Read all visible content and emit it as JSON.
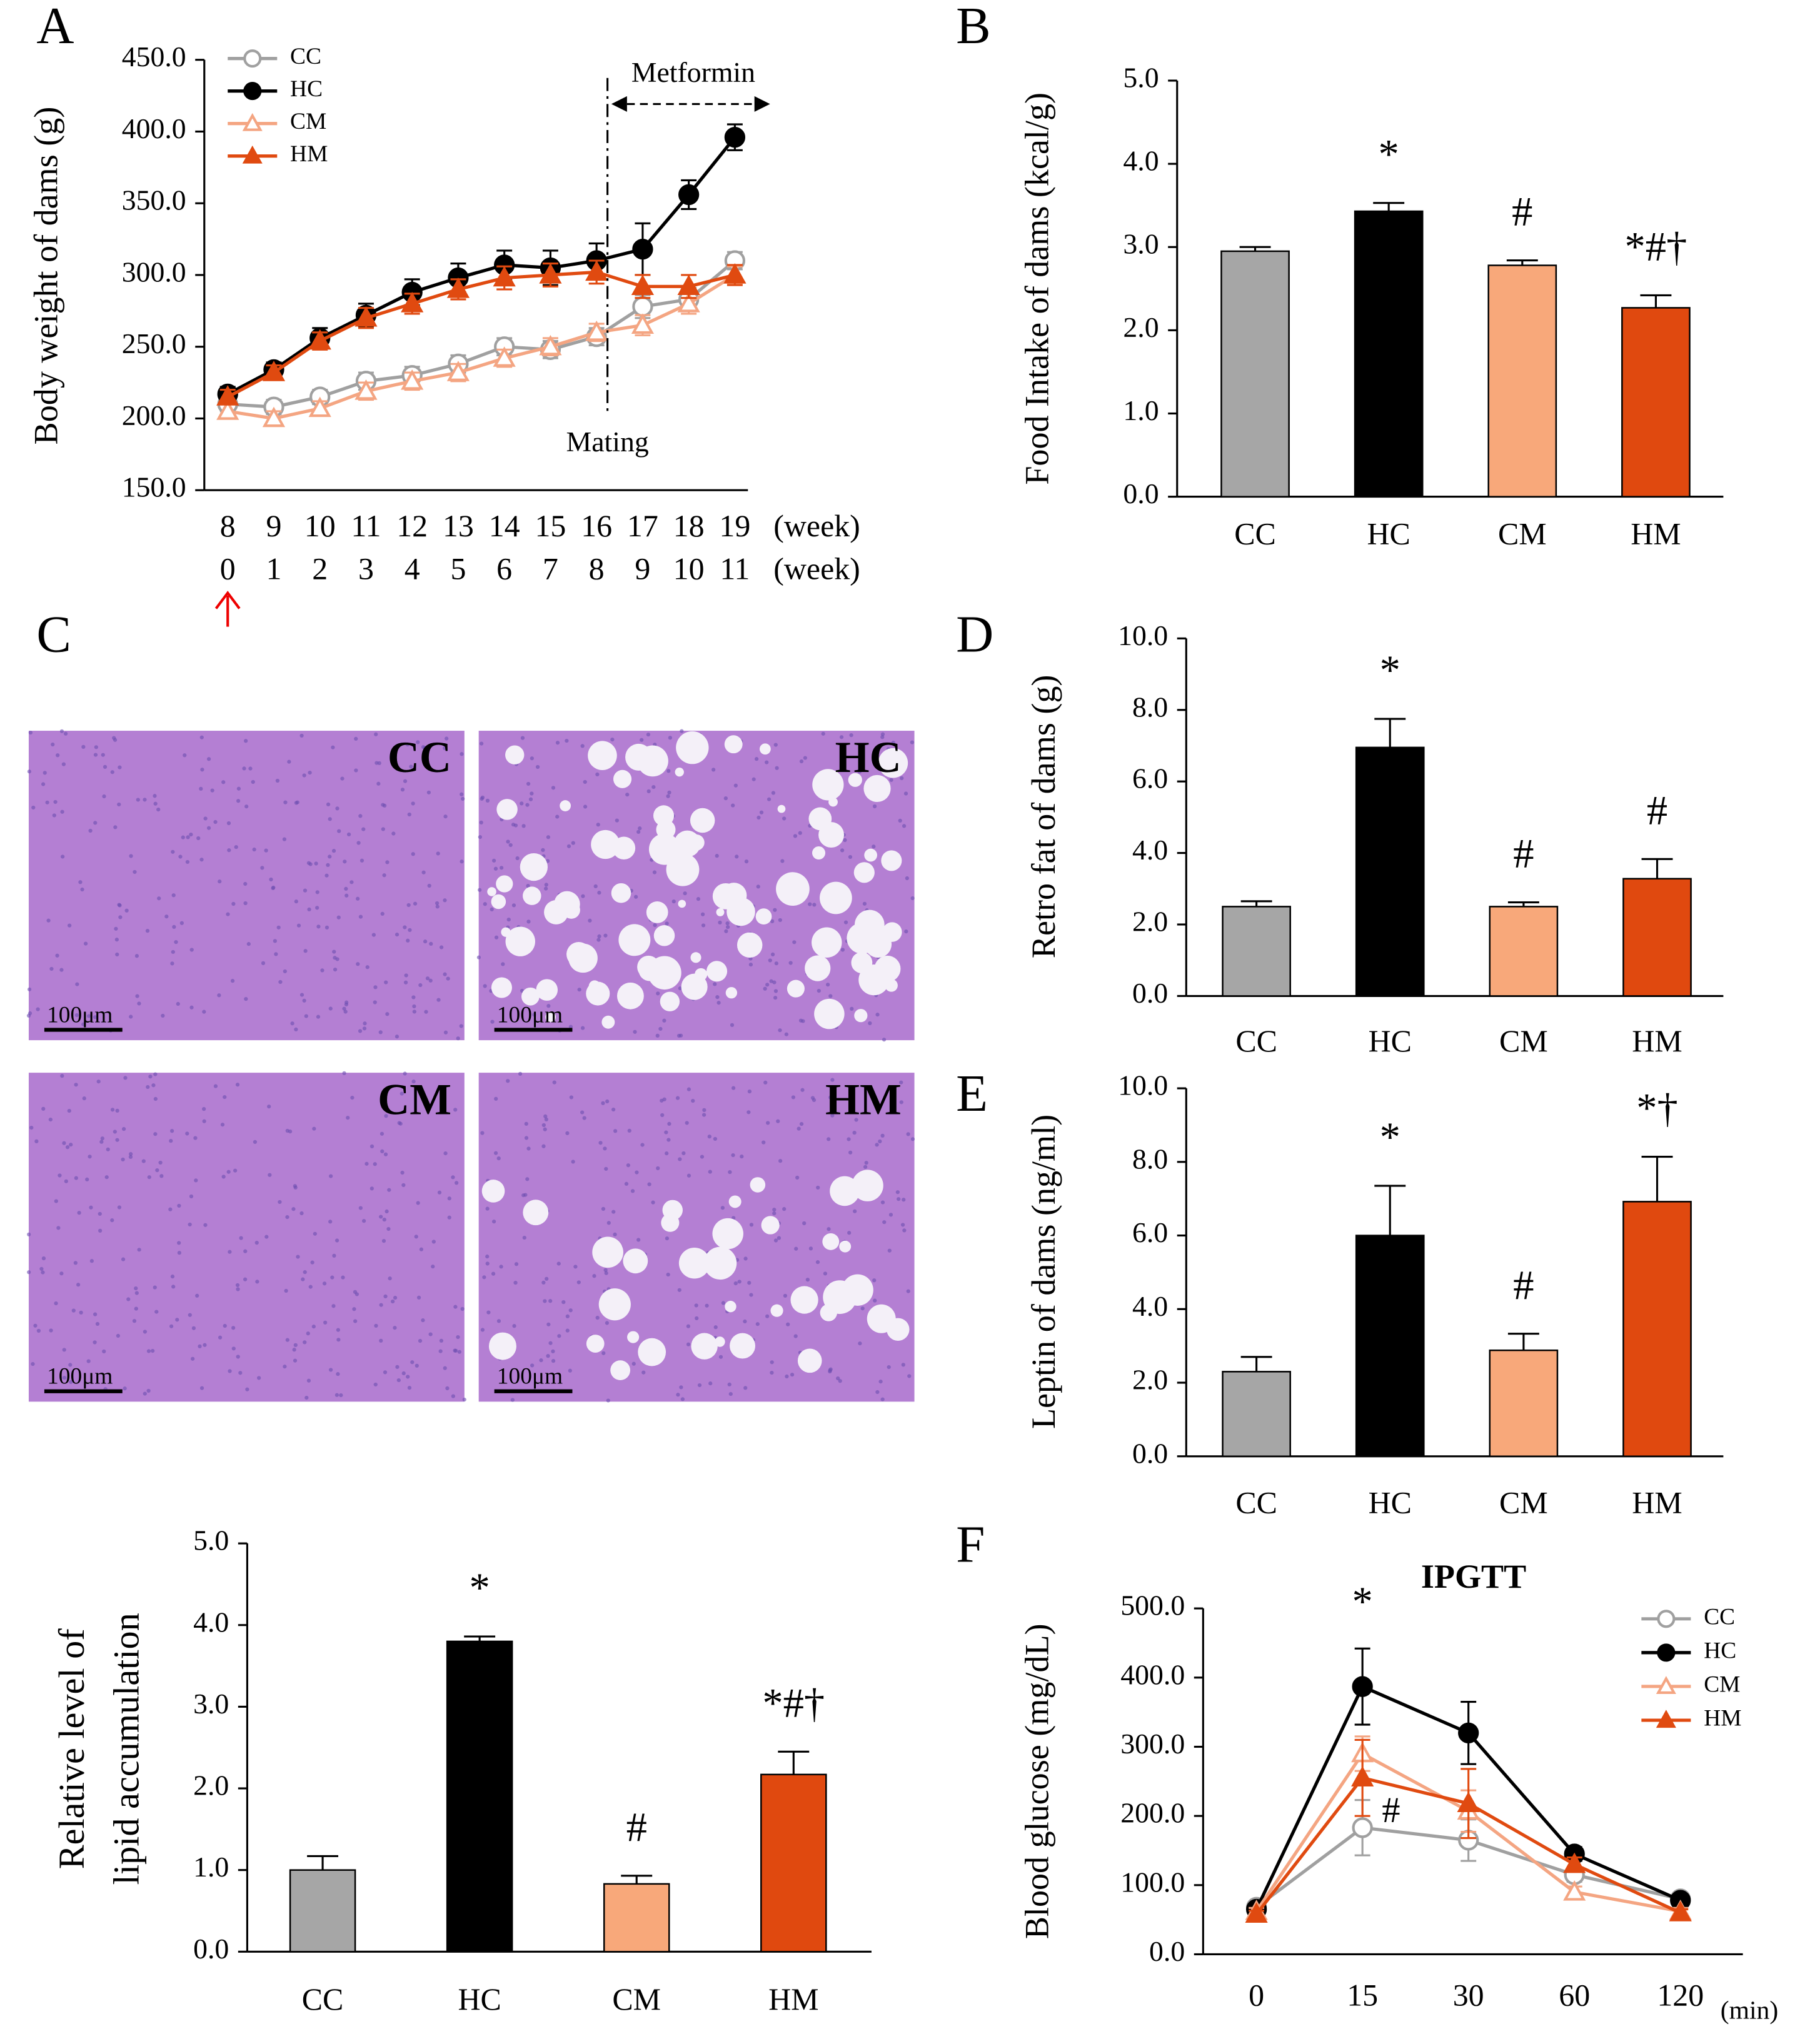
{
  "panel_letters": [
    "A",
    "B",
    "C",
    "D",
    "E",
    "F"
  ],
  "histology": {
    "panels": [
      {
        "label": "CC",
        "scale": "100μm"
      },
      {
        "label": "HC",
        "scale": "100μm"
      },
      {
        "label": "CM",
        "scale": "100μm"
      },
      {
        "label": "HM",
        "scale": "100μm"
      }
    ]
  },
  "chart_data": [
    {
      "type": "line",
      "ylabel": "Body weight of dams (g)",
      "categories": [
        "8",
        "9",
        "10",
        "11",
        "12",
        "13",
        "14",
        "15",
        "16",
        "17",
        "18",
        "19"
      ],
      "categories2": [
        "0",
        "1",
        "2",
        "3",
        "4",
        "5",
        "6",
        "7",
        "8",
        "9",
        "10",
        "11"
      ],
      "xlabel": "(week)",
      "xlabel2": "(week)",
      "annotation_metformin": "Metformin",
      "annotation_mating": "Mating",
      "ylim": [
        150,
        450
      ],
      "yticks": [
        {
          "value": 150,
          "label": "150.0"
        },
        {
          "value": 200,
          "label": "200.0"
        },
        {
          "value": 250,
          "label": "250.0"
        },
        {
          "value": 300,
          "label": "300.0"
        },
        {
          "value": 350,
          "label": "350.0"
        },
        {
          "value": 400,
          "label": "400.0"
        },
        {
          "value": 450,
          "label": "450.0"
        }
      ],
      "series": [
        {
          "name": "CC",
          "color": "#a0a0a0",
          "marker": "circle",
          "filled": false,
          "values": [
            210,
            208,
            215,
            226,
            230,
            238,
            250,
            248,
            257,
            278,
            283,
            310
          ],
          "errors": [
            5,
            5,
            5,
            6,
            6,
            6,
            6,
            6,
            6,
            8,
            8,
            6
          ]
        },
        {
          "name": "HC",
          "color": "#000000",
          "marker": "circle",
          "filled": true,
          "values": [
            217,
            234,
            256,
            272,
            288,
            298,
            307,
            305,
            310,
            318,
            356,
            396
          ],
          "errors": [
            5,
            5,
            7,
            8,
            9,
            10,
            10,
            12,
            12,
            18,
            10,
            9
          ]
        },
        {
          "name": "CM",
          "color": "#f4a582",
          "marker": "triangle",
          "filled": false,
          "values": [
            205,
            200,
            207,
            219,
            226,
            232,
            242,
            250,
            260,
            265,
            280,
            300
          ],
          "errors": [
            5,
            5,
            5,
            6,
            6,
            6,
            6,
            6,
            6,
            7,
            7,
            6
          ]
        },
        {
          "name": "HM",
          "color": "#e04a10",
          "marker": "triangle",
          "filled": true,
          "values": [
            215,
            232,
            254,
            270,
            280,
            290,
            298,
            300,
            302,
            292,
            292,
            300
          ],
          "errors": [
            5,
            5,
            6,
            7,
            7,
            7,
            8,
            8,
            8,
            8,
            8,
            7
          ]
        }
      ]
    },
    {
      "type": "bar",
      "ylabel": "Food Intake of dams (kcal/g)",
      "categories": [
        "CC",
        "HC",
        "CM",
        "HM"
      ],
      "values": [
        2.95,
        3.43,
        2.78,
        2.27
      ],
      "errors": [
        0.05,
        0.1,
        0.06,
        0.15
      ],
      "colors": [
        "#a6a6a6",
        "#000000",
        "#f8a87a",
        "#e0490f"
      ],
      "annotations": [
        null,
        "*",
        "#",
        "*#†"
      ],
      "ylim": [
        0,
        5
      ],
      "yticks": [
        {
          "value": 0,
          "label": "0.0"
        },
        {
          "value": 1,
          "label": "1.0"
        },
        {
          "value": 2,
          "label": "2.0"
        },
        {
          "value": 3,
          "label": "3.0"
        },
        {
          "value": 4,
          "label": "4.0"
        },
        {
          "value": 5,
          "label": "5.0"
        }
      ]
    },
    {
      "type": "bar",
      "ylabel": "Retro fat of dams (g)",
      "categories": [
        "CC",
        "HC",
        "CM",
        "HM"
      ],
      "values": [
        2.5,
        6.95,
        2.5,
        3.28
      ],
      "errors": [
        0.15,
        0.8,
        0.12,
        0.55
      ],
      "colors": [
        "#a6a6a6",
        "#000000",
        "#f8a87a",
        "#e0490f"
      ],
      "annotations": [
        null,
        "*",
        "#",
        "#"
      ],
      "ylim": [
        0,
        10
      ],
      "yticks": [
        {
          "value": 0,
          "label": "0.0"
        },
        {
          "value": 2,
          "label": "2.0"
        },
        {
          "value": 4,
          "label": "4.0"
        },
        {
          "value": 6,
          "label": "6.0"
        },
        {
          "value": 8,
          "label": "8.0"
        },
        {
          "value": 10,
          "label": "10.0"
        }
      ]
    },
    {
      "type": "bar",
      "ylabel": "Leptin of dams (ng/ml)",
      "categories": [
        "CC",
        "HC",
        "CM",
        "HM"
      ],
      "values": [
        2.3,
        6.0,
        2.88,
        6.92
      ],
      "errors": [
        0.4,
        1.35,
        0.45,
        1.22
      ],
      "colors": [
        "#a6a6a6",
        "#000000",
        "#f8a87a",
        "#e0490f"
      ],
      "annotations": [
        null,
        "*",
        "#",
        "*†"
      ],
      "ylim": [
        0,
        10
      ],
      "yticks": [
        {
          "value": 0,
          "label": "0.0"
        },
        {
          "value": 2,
          "label": "2.0"
        },
        {
          "value": 4,
          "label": "4.0"
        },
        {
          "value": 6,
          "label": "6.0"
        },
        {
          "value": 8,
          "label": "8.0"
        },
        {
          "value": 10,
          "label": "10.0"
        }
      ]
    },
    {
      "type": "bar",
      "ylabel": [
        "Relative level of",
        "lipid accumulation"
      ],
      "categories": [
        "CC",
        "HC",
        "CM",
        "HM"
      ],
      "values": [
        1.0,
        3.8,
        0.83,
        2.17
      ],
      "errors": [
        0.17,
        0.06,
        0.1,
        0.28
      ],
      "colors": [
        "#a6a6a6",
        "#000000",
        "#f8a87a",
        "#e0490f"
      ],
      "annotations": [
        null,
        "*",
        "#",
        "*#†"
      ],
      "ylim": [
        0,
        5
      ],
      "yticks": [
        {
          "value": 0,
          "label": "0.0"
        },
        {
          "value": 1,
          "label": "1.0"
        },
        {
          "value": 2,
          "label": "2.0"
        },
        {
          "value": 3,
          "label": "3.0"
        },
        {
          "value": 4,
          "label": "4.0"
        },
        {
          "value": 5,
          "label": "5.0"
        }
      ]
    },
    {
      "type": "line",
      "title": "IPGTT",
      "ylabel": "Blood glucose (mg/dL)",
      "categories": [
        "0",
        "15",
        "30",
        "60",
        "120"
      ],
      "xlabel": "(min)",
      "annotations": [
        "*",
        "#"
      ],
      "ylim": [
        0,
        500
      ],
      "yticks": [
        {
          "value": 0,
          "label": "0.0"
        },
        {
          "value": 100,
          "label": "100.0"
        },
        {
          "value": 200,
          "label": "200.0"
        },
        {
          "value": 300,
          "label": "300.0"
        },
        {
          "value": 400,
          "label": "400.0"
        },
        {
          "value": 500,
          "label": "500.0"
        }
      ],
      "series": [
        {
          "name": "CC",
          "color": "#a0a0a0",
          "marker": "circle",
          "filled": false,
          "values": [
            68,
            183,
            165,
            115,
            80
          ],
          "errors": [
            5,
            40,
            30,
            10,
            5
          ]
        },
        {
          "name": "HC",
          "color": "#000000",
          "marker": "circle",
          "filled": true,
          "values": [
            65,
            387,
            320,
            145,
            78
          ],
          "errors": [
            5,
            55,
            45,
            10,
            5
          ]
        },
        {
          "name": "CM",
          "color": "#f4a582",
          "marker": "triangle",
          "filled": false,
          "values": [
            62,
            290,
            207,
            90,
            62
          ],
          "errors": [
            5,
            25,
            30,
            8,
            5
          ]
        },
        {
          "name": "HM",
          "color": "#e04a10",
          "marker": "triangle",
          "filled": true,
          "values": [
            58,
            255,
            218,
            130,
            60
          ],
          "errors": [
            5,
            55,
            50,
            10,
            5
          ]
        }
      ]
    }
  ]
}
